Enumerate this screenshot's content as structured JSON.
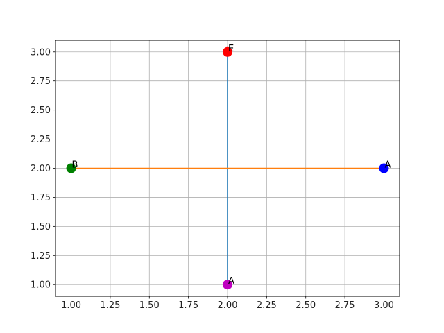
{
  "chart_data": {
    "type": "scatter",
    "title": "",
    "xlabel": "",
    "ylabel": "",
    "xlim": [
      0.9,
      3.1
    ],
    "ylim": [
      0.9,
      3.1
    ],
    "grid": true,
    "xticks": [
      "1.00",
      "1.25",
      "1.50",
      "1.75",
      "2.00",
      "2.25",
      "2.50",
      "2.75",
      "3.00"
    ],
    "yticks": [
      "1.00",
      "1.25",
      "1.50",
      "1.75",
      "2.00",
      "2.25",
      "2.50",
      "2.75",
      "3.00"
    ],
    "points": [
      {
        "label": "A",
        "x": 3,
        "y": 2,
        "color": "#0000ff"
      },
      {
        "label": "B",
        "x": 1,
        "y": 2,
        "color": "#008000"
      },
      {
        "label": "E",
        "x": 2,
        "y": 3,
        "color": "#ff0000"
      },
      {
        "label": "A",
        "x": 2,
        "y": 1,
        "color": "#bf00bf"
      }
    ],
    "lines": [
      {
        "x": [
          2,
          2
        ],
        "y": [
          1,
          3
        ],
        "color": "#1f77b4"
      },
      {
        "x": [
          1,
          3
        ],
        "y": [
          2,
          2
        ],
        "color": "#ff7f0e"
      }
    ]
  }
}
